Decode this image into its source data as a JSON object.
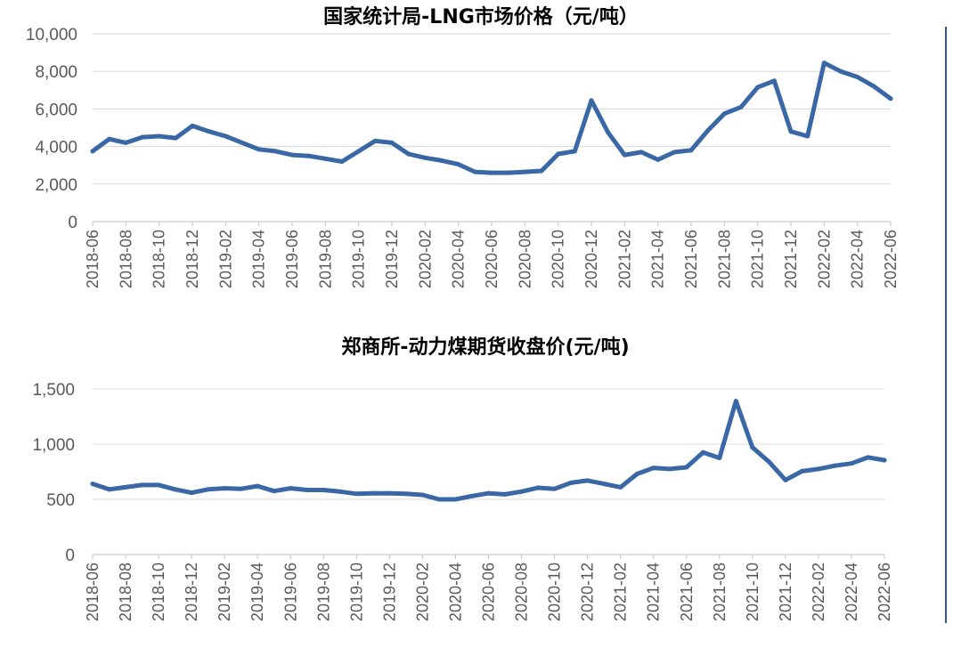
{
  "colors": {
    "series": "#3a67a5",
    "separator": "#2e5b9a"
  },
  "chart_data": [
    {
      "type": "line",
      "title": "国家统计局-LNG市场价格（元/吨）",
      "ylim": [
        0,
        10000
      ],
      "yticks": [
        "0",
        "2,000",
        "4,000",
        "6,000",
        "8,000",
        "10,000"
      ],
      "grid": true,
      "xtick_labels": [
        "2018-06",
        "2018-08",
        "2018-10",
        "2018-12",
        "2019-02",
        "2019-04",
        "2019-06",
        "2019-08",
        "2019-10",
        "2019-12",
        "2020-02",
        "2020-04",
        "2020-06",
        "2020-08",
        "2020-10",
        "2020-12",
        "2021-02",
        "2021-04",
        "2021-06",
        "2021-08",
        "2021-10",
        "2021-12",
        "2022-02",
        "2022-04",
        "2022-06"
      ],
      "series": [
        {
          "values": [
            3750,
            4400,
            4200,
            4500,
            4550,
            4450,
            5100,
            4800,
            4550,
            4200,
            3850,
            3750,
            3550,
            3500,
            3350,
            3200,
            3750,
            4300,
            4200,
            3600,
            3400,
            3250,
            3050,
            2650,
            2600,
            2600,
            2650,
            2700,
            3600,
            3750,
            6450,
            4750,
            3550,
            3700,
            3300,
            3700,
            3800,
            4850,
            5750,
            6100,
            7150,
            7500,
            4800,
            4550,
            8450,
            8000,
            7700,
            7200,
            6550
          ]
        }
      ]
    },
    {
      "type": "line",
      "title": "郑商所-动力煤期货收盘价(元/吨)",
      "ylim": [
        0,
        1500
      ],
      "yticks": [
        "0",
        "500",
        "1,000",
        "1,500"
      ],
      "grid": true,
      "xtick_labels": [
        "2018-06",
        "2018-08",
        "2018-10",
        "2018-12",
        "2019-02",
        "2019-04",
        "2019-06",
        "2019-08",
        "2019-10",
        "2019-12",
        "2020-02",
        "2020-04",
        "2020-06",
        "2020-08",
        "2020-10",
        "2020-12",
        "2021-02",
        "2021-04",
        "2021-06",
        "2021-08",
        "2021-10",
        "2021-12",
        "2022-02",
        "2022-04",
        "2022-06"
      ],
      "series": [
        {
          "values": [
            640,
            590,
            610,
            630,
            630,
            590,
            560,
            590,
            600,
            595,
            620,
            575,
            600,
            585,
            585,
            570,
            550,
            555,
            555,
            550,
            540,
            500,
            500,
            530,
            555,
            545,
            570,
            605,
            595,
            650,
            670,
            640,
            610,
            730,
            785,
            775,
            790,
            925,
            875,
            1390,
            970,
            840,
            675,
            755,
            775,
            805,
            825,
            880,
            855
          ]
        }
      ]
    }
  ]
}
